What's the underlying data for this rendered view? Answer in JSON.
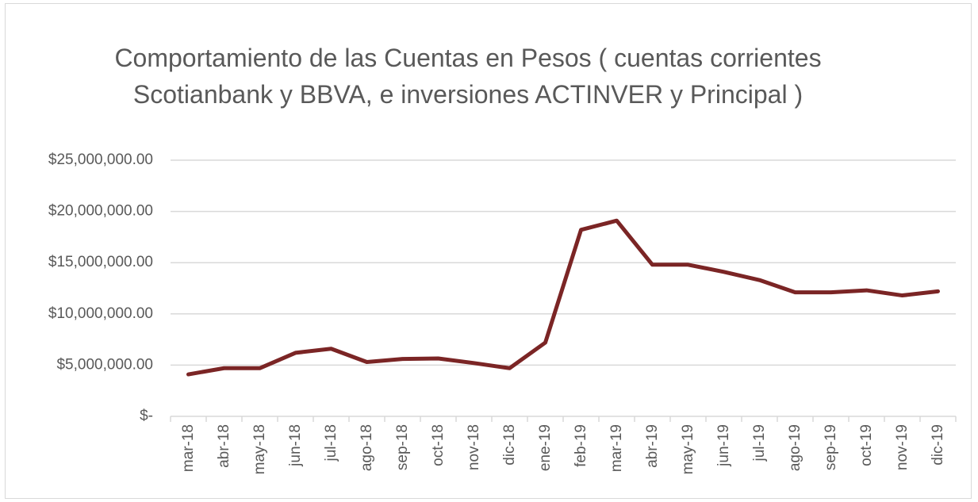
{
  "chart_data": {
    "type": "line",
    "title": "Comportamiento de las Cuentas en Pesos  ( cuentas corrientes Scotianbank y BBVA, e inversiones ACTINVER y Principal )",
    "categories": [
      "mar-18",
      "abr-18",
      "may-18",
      "jun-18",
      "jul-18",
      "ago-18",
      "sep-18",
      "oct-18",
      "nov-18",
      "dic-18",
      "ene-19",
      "feb-19",
      "mar-19",
      "abr-19",
      "may-19",
      "jun-19",
      "jul-19",
      "ago-19",
      "sep-19",
      "oct-19",
      "nov-19",
      "dic-19"
    ],
    "values": [
      4100000,
      4700000,
      4700000,
      6200000,
      6600000,
      5300000,
      5600000,
      5650000,
      5200000,
      4700000,
      7200000,
      18200000,
      19100000,
      14800000,
      14800000,
      14100000,
      13300000,
      12100000,
      12100000,
      12300000,
      11800000,
      12200000
    ],
    "color": "#7b2525",
    "ylim": [
      0,
      25000000
    ],
    "yticks": [
      {
        "value": 0,
        "label": "$-"
      },
      {
        "value": 5000000,
        "label": "$5,000,000.00"
      },
      {
        "value": 10000000,
        "label": "$10,000,000.00"
      },
      {
        "value": 15000000,
        "label": "$15,000,000.00"
      },
      {
        "value": 20000000,
        "label": "$20,000,000.00"
      },
      {
        "value": 25000000,
        "label": "$25,000,000.00"
      }
    ],
    "grid": true
  }
}
